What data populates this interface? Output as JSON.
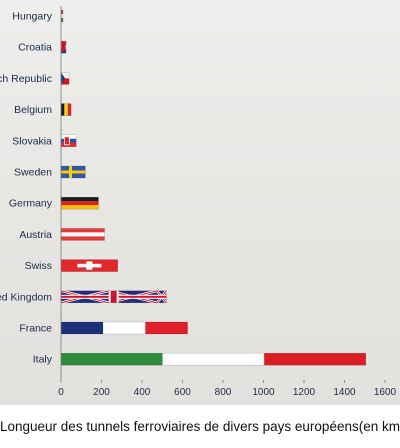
{
  "caption": "Longueur des tunnels ferroviaires de divers pays européens(en km)",
  "chart_data": {
    "type": "bar",
    "orientation": "horizontal",
    "title": "",
    "xlabel": "",
    "ylabel": "",
    "xlim": [
      0,
      1700
    ],
    "x_ticks": [
      0,
      200,
      400,
      600,
      800,
      1000,
      1200,
      1400,
      1600
    ],
    "grid": false,
    "categories": [
      "Hungary",
      "Croatia",
      "Czech Republic",
      "Belgium",
      "Slovakia",
      "Sweden",
      "Germany",
      "Austria",
      "Swiss",
      "United Kingdom",
      "France",
      "Italy"
    ],
    "values": [
      5,
      25,
      40,
      50,
      75,
      120,
      185,
      215,
      280,
      520,
      625,
      1505
    ],
    "bar_flags": [
      "hungary",
      "croatia",
      "czech",
      "belgium",
      "slovakia",
      "sweden",
      "germany",
      "austria",
      "swiss",
      "uk",
      "france",
      "italy"
    ]
  }
}
